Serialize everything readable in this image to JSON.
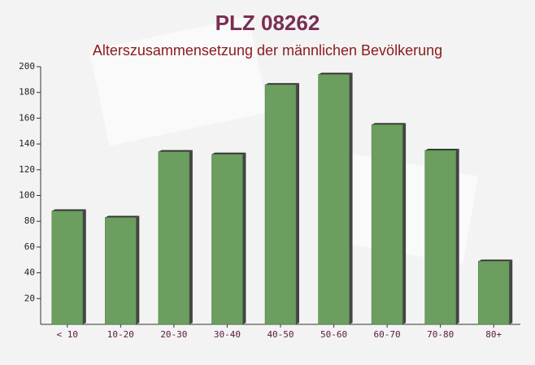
{
  "chart_data": {
    "type": "bar",
    "title": "PLZ 08262",
    "subtitle": "Alterszusammensetzung der männlichen Bevölkerung",
    "categories": [
      "< 10",
      "10-20",
      "20-30",
      "30-40",
      "40-50",
      "50-60",
      "60-70",
      "70-80",
      "80+"
    ],
    "values": [
      88,
      83,
      134,
      132,
      186,
      194,
      155,
      135,
      49
    ],
    "color": "#6b9e5f",
    "ylim": [
      0,
      200
    ],
    "yticks": [
      20,
      40,
      60,
      80,
      100,
      120,
      140,
      160,
      180,
      200
    ]
  }
}
